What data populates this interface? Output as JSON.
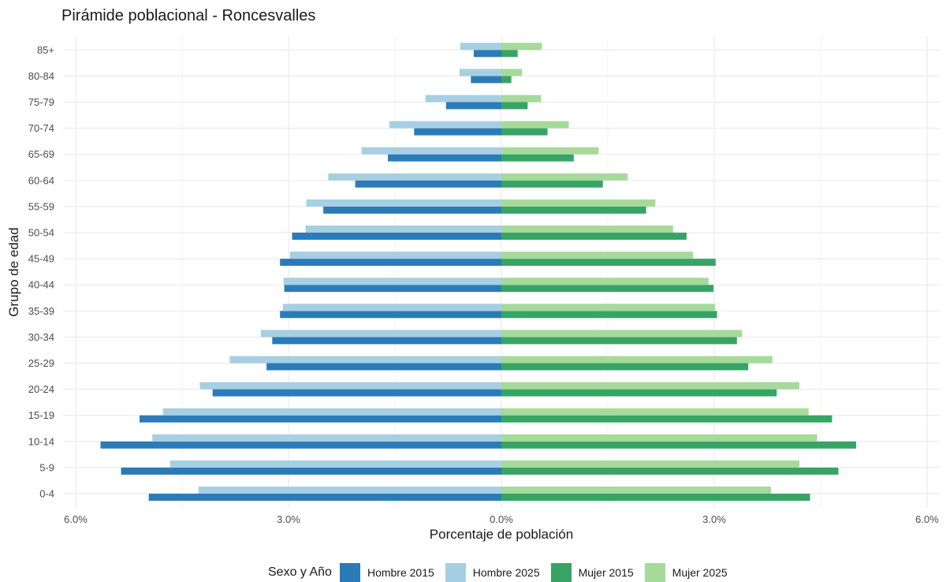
{
  "colors": {
    "hombre_2015": "#2b7bb9",
    "hombre_2025": "#a6cfe3",
    "mujer_2015": "#37a465",
    "mujer_2025": "#a5da9a",
    "grid": "#ebebeb",
    "text": "#4d4d4d"
  },
  "chart_data": {
    "type": "bar",
    "orientation": "horizontal",
    "title": "Pirámide poblacional - Roncesvalles",
    "xlabel": "Porcentaje de población",
    "ylabel": "Grupo de edad",
    "xlim": [
      -6.0,
      6.0
    ],
    "xticks": [
      -6,
      -3,
      0,
      3,
      6
    ],
    "xtick_labels": [
      "6.0%",
      "3.0%",
      "0.0%",
      "3.0%",
      "6.0%"
    ],
    "grid": true,
    "legend": {
      "title": "Sexo y Año",
      "position": "bottom",
      "entries": [
        "Hombre 2015",
        "Hombre 2025",
        "Mujer 2015",
        "Mujer 2025"
      ]
    },
    "categories": [
      "0-4",
      "5-9",
      "10-14",
      "15-19",
      "20-24",
      "25-29",
      "30-34",
      "35-39",
      "40-44",
      "45-49",
      "50-54",
      "55-59",
      "60-64",
      "65-69",
      "70-74",
      "75-79",
      "80-84",
      "85+"
    ],
    "series": [
      {
        "name": "Hombre 2015",
        "side": "left",
        "values": [
          4.97,
          5.36,
          5.65,
          5.1,
          4.07,
          3.31,
          3.23,
          3.12,
          3.06,
          3.12,
          2.95,
          2.51,
          2.06,
          1.6,
          1.23,
          0.78,
          0.43,
          0.39
        ]
      },
      {
        "name": "Hombre 2025",
        "side": "left",
        "values": [
          4.27,
          4.67,
          4.92,
          4.77,
          4.25,
          3.83,
          3.39,
          3.08,
          3.07,
          2.98,
          2.76,
          2.75,
          2.44,
          1.97,
          1.58,
          1.07,
          0.59,
          0.58
        ]
      },
      {
        "name": "Mujer 2015",
        "side": "right",
        "values": [
          4.35,
          4.75,
          5.0,
          4.66,
          3.88,
          3.48,
          3.32,
          3.04,
          2.99,
          3.02,
          2.61,
          2.04,
          1.43,
          1.02,
          0.65,
          0.37,
          0.14,
          0.23
        ]
      },
      {
        "name": "Mujer 2025",
        "side": "right",
        "values": [
          3.8,
          4.2,
          4.45,
          4.33,
          4.2,
          3.82,
          3.39,
          3.01,
          2.92,
          2.7,
          2.42,
          2.17,
          1.78,
          1.37,
          0.95,
          0.56,
          0.29,
          0.57
        ]
      }
    ]
  }
}
